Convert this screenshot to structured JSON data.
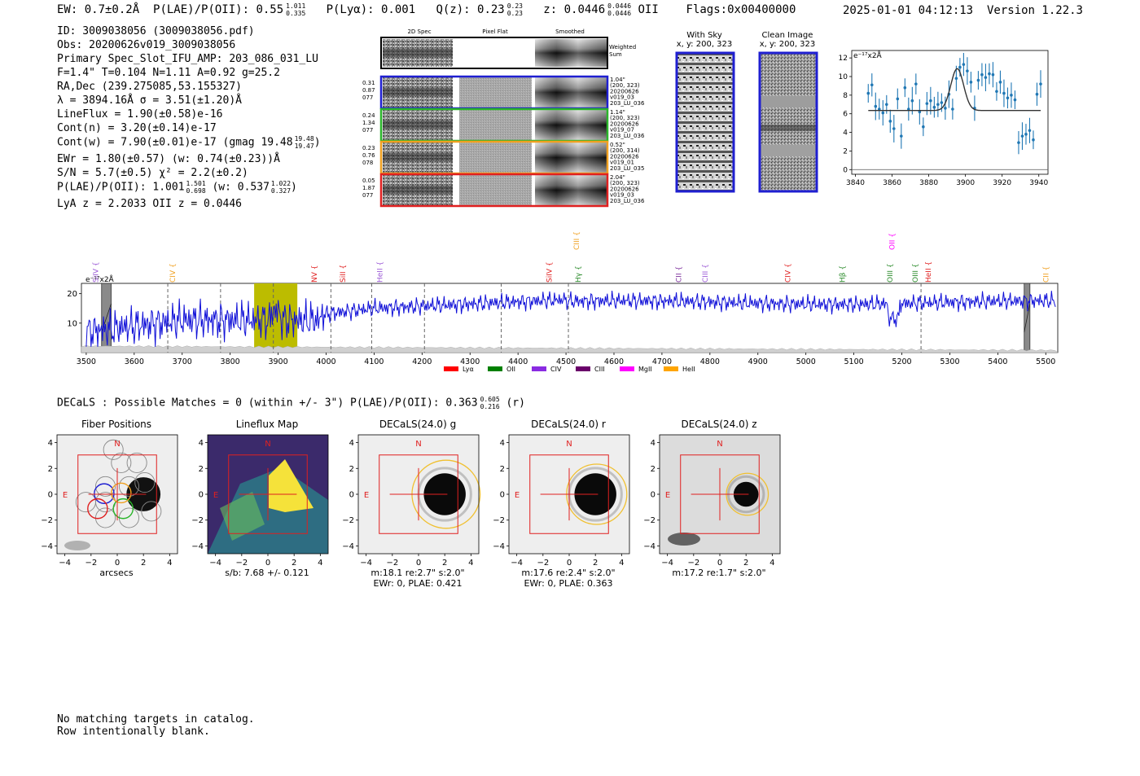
{
  "header": {
    "ew": "EW: 0.7±0.2Å",
    "plae_label": "P(LAE)/P(OII): 0.55",
    "plae_hi": "1.011",
    "plae_lo": "0.335",
    "plya": "P(Lyα): 0.001",
    "qz_label": "Q(z): 0.23",
    "qz_hi": "0.23",
    "qz_lo": "0.23",
    "z_label": "z: 0.0446",
    "z_hi": "0.0446",
    "z_lo": "0.0446",
    "z_line": "OII",
    "flags": "Flags:0x00400000",
    "datetime": "2025-01-01 04:12:13",
    "version": "Version 1.22.3"
  },
  "info": {
    "id": "ID: 3009038056 (3009038056.pdf)",
    "obs": "Obs: 20200626v019_3009038056",
    "primary": "Primary Spec_Slot_IFU_AMP: 203_086_031_LU",
    "params": "F=1.4\"  T=0.104  N=1.11  A=0.92  g=25.2",
    "radec": "RA,Dec (239.275085,53.155327)",
    "lambda": "λ = 3894.16Å  σ = 3.51(±1.20)Å",
    "lineflux": "LineFlux = 1.90(±0.58)e-16",
    "contn": "Cont(n) = 3.20(±0.14)e-17",
    "contw": "Cont(w) = 7.90(±0.01)e-17 (gmag 19.48",
    "contw_hi": "19.48",
    "contw_lo": "19.47",
    "ewr": "EWr = 1.80(±0.57) (w: 0.74(±0.23))Å",
    "sn": "S/N = 5.7(±0.5)  χ² = 2.2(±0.2)",
    "plae2": "P(LAE)/P(OII): 1.001",
    "plae2_hi": "1.501",
    "plae2_lo": "0.698",
    "plae2_w": "(w: 0.537",
    "plae2_w_hi": "1.022",
    "plae2_w_lo": "0.327",
    "lyaz": "LyA z = 2.2033   OII z = 0.0446"
  },
  "spec2d": {
    "col_titles": [
      "2D Spec",
      "Pixel Flat",
      "Smoothed"
    ],
    "weighted_sum": [
      "Weighted",
      "Sum"
    ],
    "rows": [
      {
        "left": [
          "0.31",
          "0.87",
          "077"
        ],
        "right": [
          "1.04\"",
          "(200, 323)",
          "20200626",
          "v019_03",
          "203_LU_036"
        ],
        "color": "#1f1fd1"
      },
      {
        "left": [
          "0.24",
          "1.34",
          "077"
        ],
        "right": [
          "1.14\"",
          "(200, 323)",
          "20200626",
          "v019_07",
          "203_LU_036"
        ],
        "color": "#2ab52a"
      },
      {
        "left": [
          "0.23",
          "0.76",
          "078"
        ],
        "right": [
          "0.52\"",
          "(200, 314)",
          "20200626",
          "v019_01",
          "203_LU_035"
        ],
        "color": "#f0a020"
      },
      {
        "left": [
          "0.05",
          "1.87",
          "077"
        ],
        "right": [
          "2.04\"",
          "(200, 323)",
          "20200626",
          "v019_03",
          "203_LU_036"
        ],
        "color": "#e02020"
      }
    ]
  },
  "sky": {
    "with_sky_title": "With Sky",
    "with_sky_xy": "x, y: 200, 323",
    "clean_title": "Clean Image",
    "clean_xy": "x, y: 200, 323"
  },
  "zoom_chart": {
    "type": "scatter",
    "unit_label": "e⁻¹⁷x2Å",
    "x_ticks": [
      "3840",
      "3860",
      "3880",
      "3900",
      "3920",
      "3940"
    ],
    "y_ticks": [
      "0",
      "2",
      "4",
      "6",
      "8",
      "10",
      "12"
    ],
    "xlim": [
      3838,
      3945
    ],
    "ylim": [
      -0.5,
      12.8
    ],
    "x": [
      3847,
      3849,
      3851,
      3853,
      3855,
      3857,
      3859,
      3861,
      3863,
      3865,
      3867,
      3869,
      3871,
      3873,
      3875,
      3877,
      3879,
      3881,
      3883,
      3885,
      3887,
      3889,
      3891,
      3893,
      3895,
      3897,
      3899,
      3901,
      3903,
      3905,
      3907,
      3909,
      3911,
      3913,
      3915,
      3917,
      3919,
      3921,
      3923,
      3925,
      3927,
      3929,
      3931,
      3933,
      3935,
      3937,
      3939,
      3941
    ],
    "y": [
      8.2,
      9.1,
      6.8,
      6.5,
      6.1,
      7.0,
      5.2,
      4.4,
      7.6,
      3.6,
      8.8,
      6.5,
      7.4,
      9.2,
      6.2,
      4.6,
      7.1,
      7.4,
      6.7,
      7.0,
      7.2,
      6.6,
      8.1,
      6.5,
      9.8,
      11.0,
      11.3,
      10.6,
      9.4,
      6.6,
      9.6,
      10.2,
      9.9,
      10.3,
      10.2,
      8.4,
      9.4,
      8.2,
      7.7,
      8.0,
      7.5,
      2.9,
      3.6,
      3.8,
      4.2,
      3.2,
      8.1,
      9.2
    ],
    "fit_center": 3895.5,
    "fit_sigma": 3.5,
    "fit_continuum": 6.35,
    "fit_amplitude": 4.5
  },
  "full_spectrum": {
    "type": "line",
    "unit_label": "e⁻¹⁷x2Å",
    "x_ticks": [
      "3500",
      "3600",
      "3700",
      "3800",
      "3900",
      "4000",
      "4100",
      "4200",
      "4300",
      "4400",
      "4500",
      "4600",
      "4700",
      "4800",
      "4900",
      "5000",
      "5100",
      "5200",
      "5300",
      "5400",
      "5500"
    ],
    "y_ticks": [
      "10",
      "20"
    ],
    "xlim": [
      3490,
      5525
    ],
    "ylim": [
      0,
      23.5
    ],
    "highlight_range": [
      3850,
      3940
    ],
    "dashed_lines": [
      3670,
      3780,
      3890,
      4010,
      4095,
      4205,
      4365,
      4505,
      5240
    ],
    "masked_ranges": [
      [
        3532,
        3552
      ],
      [
        5455,
        5467
      ]
    ],
    "line_labels": [
      {
        "name": "SiIV",
        "wave": 3520,
        "color": "#9b59d6",
        "high": false
      },
      {
        "name": "CIV",
        "wave": 3680,
        "color": "#f0a020",
        "high": false
      },
      {
        "name": "NV",
        "wave": 3975,
        "color": "#e02020",
        "high": false
      },
      {
        "name": "SiII",
        "wave": 4035,
        "color": "#e02020",
        "high": false
      },
      {
        "name": "HeII",
        "wave": 4112,
        "color": "#9b59d6",
        "high": false
      },
      {
        "name": "SiIV",
        "wave": 4465,
        "color": "#e02020",
        "high": false
      },
      {
        "name": "CIII",
        "wave": 4522,
        "color": "#f0a020",
        "high": true
      },
      {
        "name": "Hγ",
        "wave": 4525,
        "color": "#2a8a2a",
        "high": false
      },
      {
        "name": "CII",
        "wave": 4735,
        "color": "#7b2d9b",
        "high": false
      },
      {
        "name": "CIII",
        "wave": 4790,
        "color": "#9b59d6",
        "high": false
      },
      {
        "name": "CIV",
        "wave": 4962,
        "color": "#e02020",
        "high": false
      },
      {
        "name": "Hβ",
        "wave": 5076,
        "color": "#2a8a2a",
        "high": false
      },
      {
        "name": "OIII",
        "wave": 5175,
        "color": "#2a8a2a",
        "high": false
      },
      {
        "name": "OII",
        "wave": 5180,
        "color": "#ff00ff",
        "high": true
      },
      {
        "name": "OIII",
        "wave": 5228,
        "color": "#2a8a2a",
        "high": false
      },
      {
        "name": "HeII",
        "wave": 5255,
        "color": "#e02020",
        "high": false
      },
      {
        "name": "CII",
        "wave": 5500,
        "color": "#f0a020",
        "high": false
      }
    ],
    "legend": [
      {
        "name": "Lyα",
        "color": "#ff0000"
      },
      {
        "name": "OII",
        "color": "#008000"
      },
      {
        "name": "CIV",
        "color": "#8a2be2"
      },
      {
        "name": "CIII",
        "color": "#6a006a"
      },
      {
        "name": "MgII",
        "color": "#ff00ff"
      },
      {
        "name": "HeII",
        "color": "#ffa500"
      }
    ]
  },
  "decals": {
    "summary": "DECaLS : Possible Matches = 0 (within +/- 3\")  P(LAE)/P(OII): 0.363",
    "summary_hi": "0.605",
    "summary_lo": "0.216",
    "summary_band": "(r)"
  },
  "cutouts": [
    {
      "title": "Fiber Positions",
      "xlabel": "arcsecs",
      "foot": []
    },
    {
      "title": "Lineflux Map",
      "xlabel": "s/b: 7.68 +/- 0.121",
      "foot": []
    },
    {
      "title": "DECaLS(24.0) g",
      "xlabel": "",
      "foot": [
        "m:18.1  re:2.7\"  s:2.0\"",
        "EWr: 0, PLAE: 0.421"
      ]
    },
    {
      "title": "DECaLS(24.0) r",
      "xlabel": "",
      "foot": [
        "m:17.6  re:2.4\"  s:2.0\"",
        "EWr: 0, PLAE: 0.363"
      ]
    },
    {
      "title": "DECaLS(24.0) z",
      "xlabel": "",
      "foot": [
        "m:17.2  re:1.7\"  s:2.0\""
      ]
    }
  ],
  "cutout_axes": {
    "ticks": [
      "−4",
      "−2",
      "0",
      "2",
      "4"
    ],
    "north": "N",
    "east": "E"
  },
  "footer": {
    "line1": "No matching targets in catalog.",
    "line2": "Row intentionally blank."
  }
}
